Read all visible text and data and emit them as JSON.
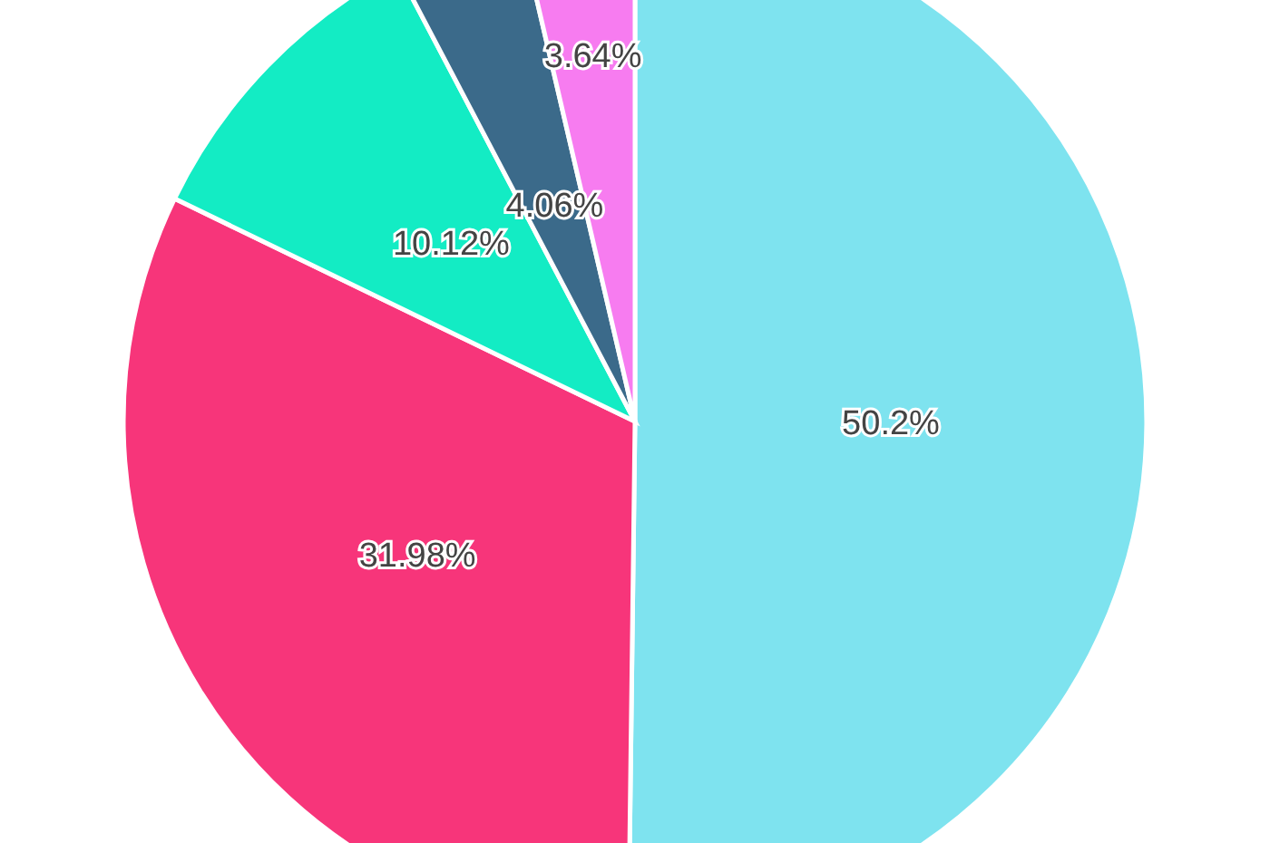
{
  "chart_data": {
    "type": "pie",
    "categories": [
      null,
      null,
      null,
      null,
      null
    ],
    "values": [
      50.2,
      31.98,
      10.12,
      4.06,
      3.64
    ],
    "colors": [
      "#7ee3ef",
      "#f7357a",
      "#13ecc4",
      "#3b6a8a",
      "#f77cf0"
    ],
    "value_labels": [
      "50.2%",
      "31.98%",
      "10.12%",
      "4.06%",
      "3.64%"
    ]
  }
}
